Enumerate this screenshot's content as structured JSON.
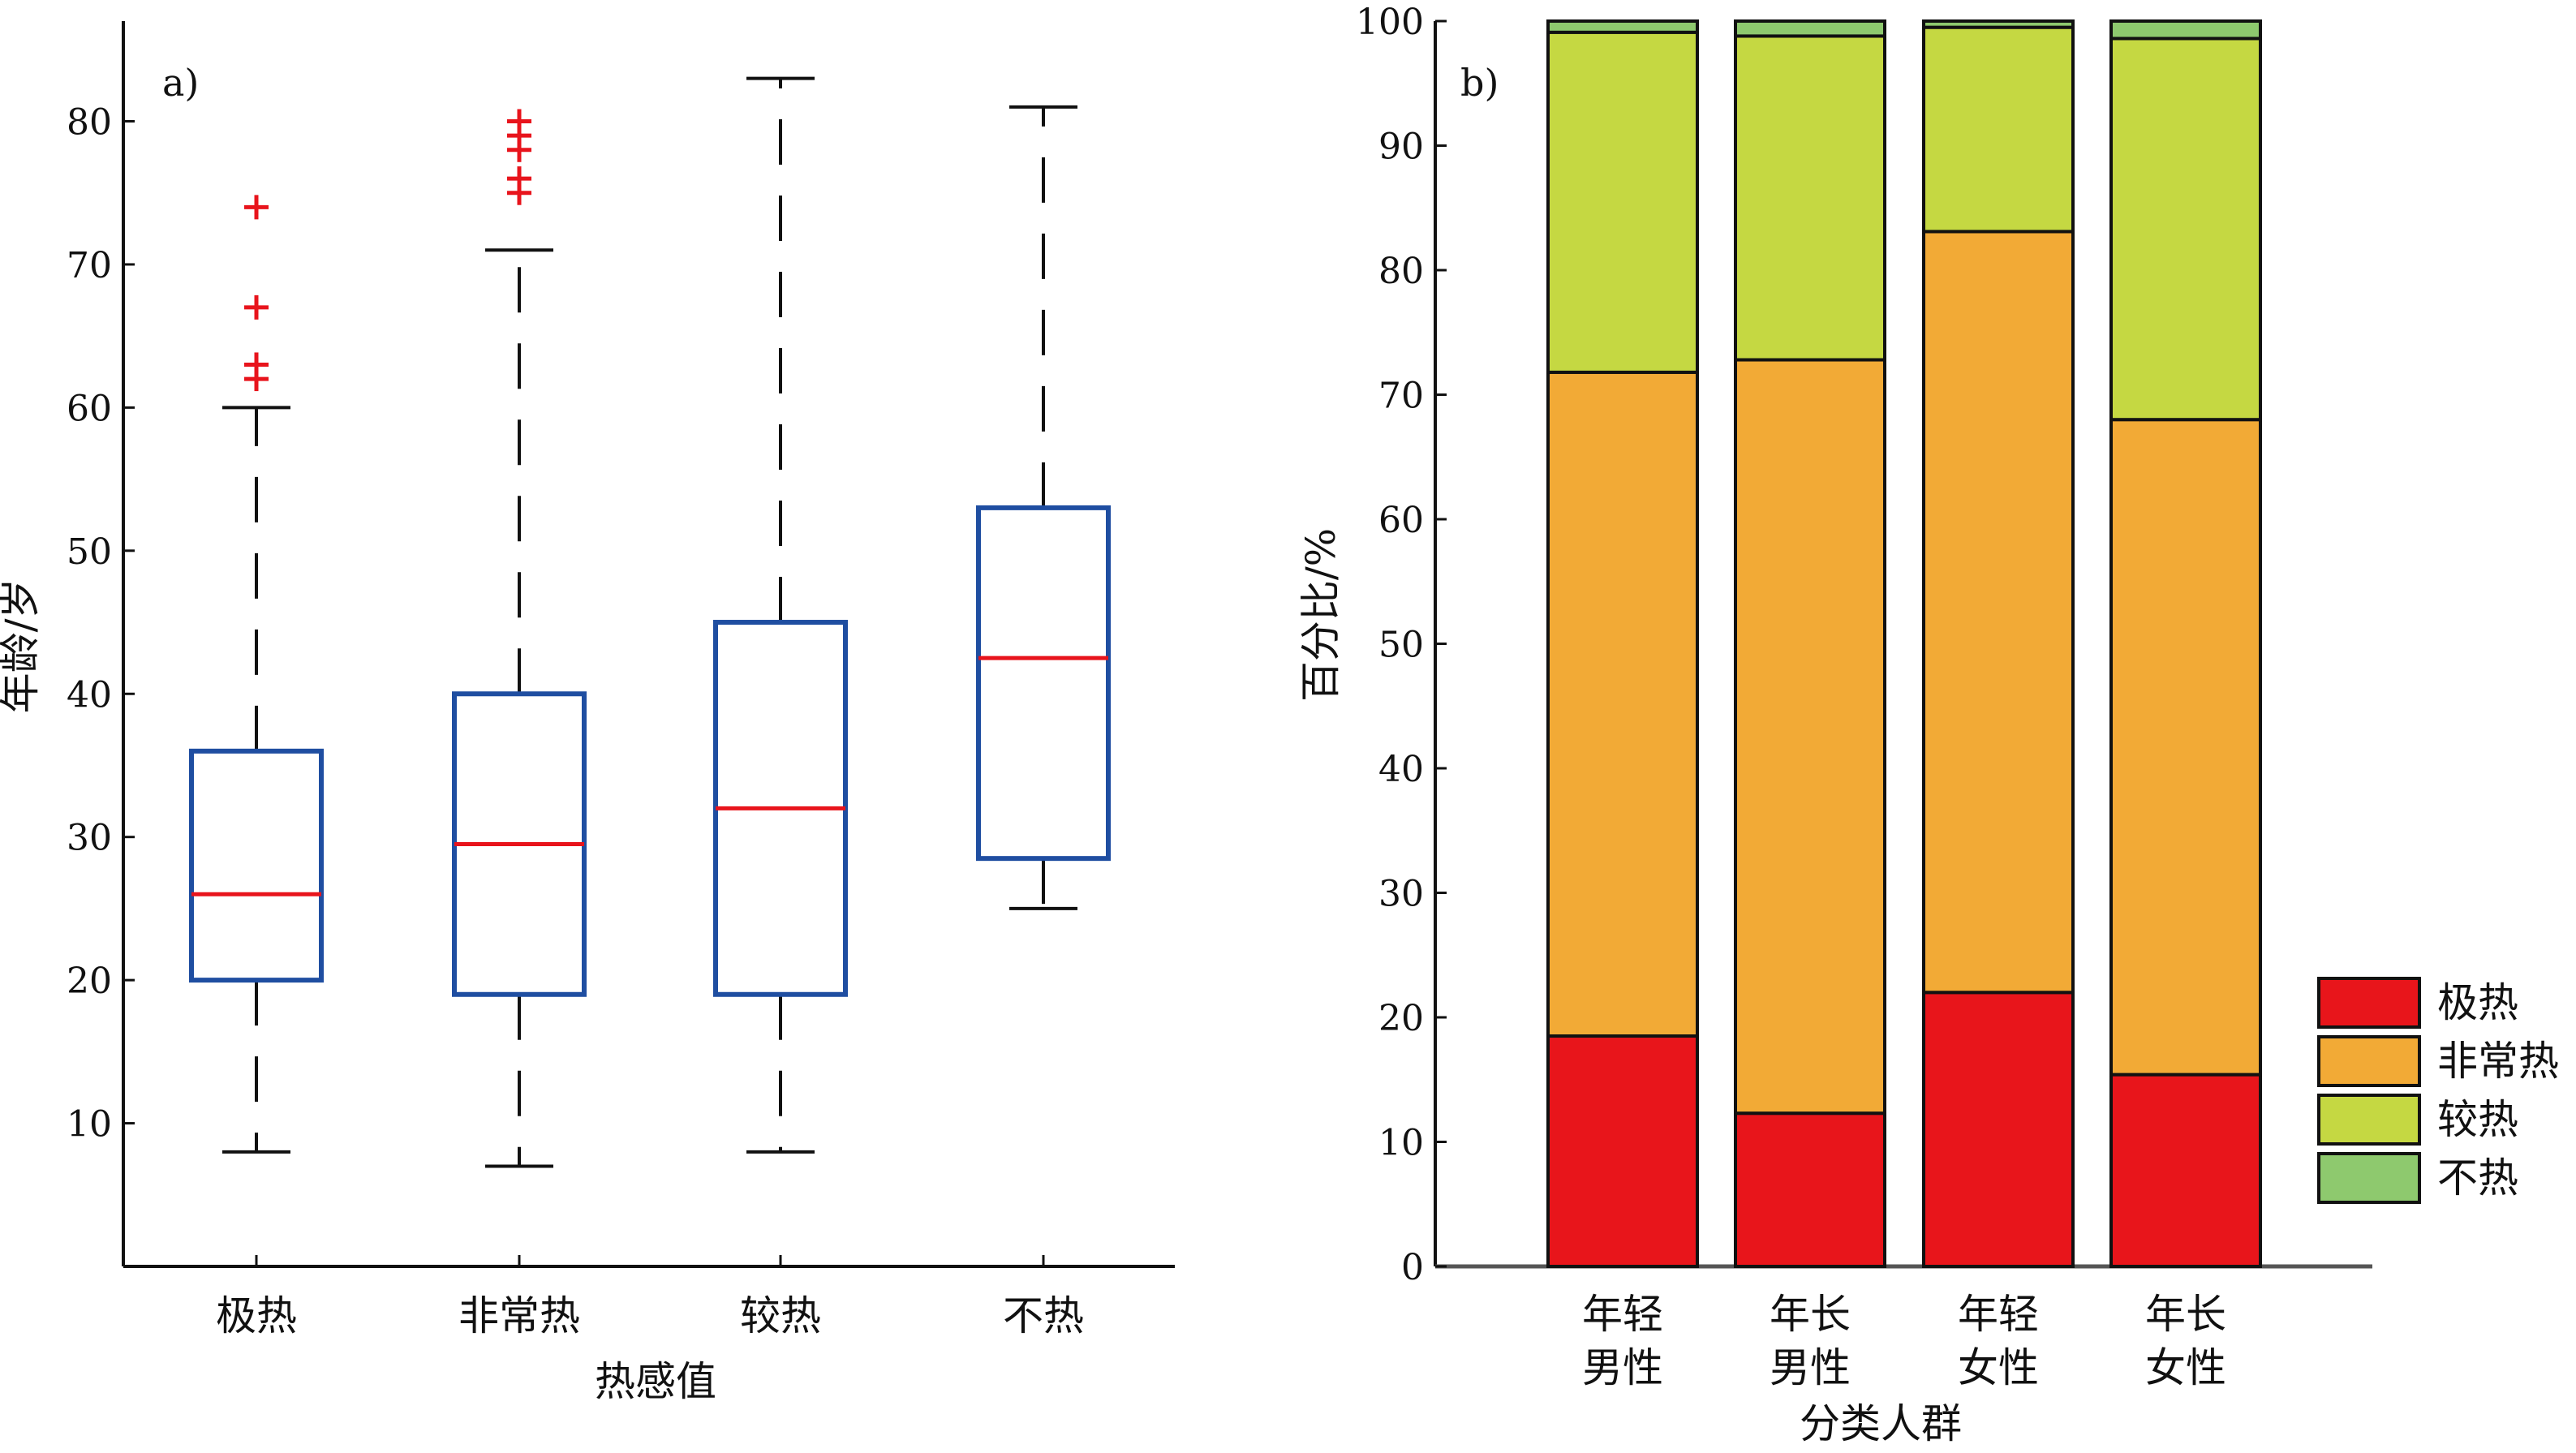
{
  "chart_data": [
    {
      "panel_label": "a)",
      "type": "box",
      "xlabel": "热感值",
      "ylabel": "年龄/岁",
      "ylim": [
        0,
        87
      ],
      "yticks": [
        10,
        20,
        30,
        40,
        50,
        60,
        70,
        80
      ],
      "categories": [
        "极热",
        "非常热",
        "较热",
        "不热"
      ],
      "boxes": [
        {
          "category": "极热",
          "whisker_low": 8,
          "q1": 20,
          "median": 26,
          "q3": 36,
          "whisker_high": 60,
          "outliers": [
            62,
            63,
            67,
            74
          ]
        },
        {
          "category": "非常热",
          "whisker_low": 7,
          "q1": 19,
          "median": 29.5,
          "q3": 40,
          "whisker_high": 71,
          "outliers": [
            75,
            76,
            78,
            79,
            80
          ]
        },
        {
          "category": "较热",
          "whisker_low": 8,
          "q1": 19,
          "median": 32,
          "q3": 45,
          "whisker_high": 83,
          "outliers": []
        },
        {
          "category": "不热",
          "whisker_low": 25,
          "q1": 28.5,
          "median": 42.5,
          "q3": 53,
          "whisker_high": 81,
          "outliers": []
        }
      ],
      "colors": {
        "box": "#1f4ea1",
        "median": "#e8141c",
        "whisker": "#111111",
        "outlier": "#e8141c"
      }
    },
    {
      "panel_label": "b)",
      "type": "stacked_bar",
      "xlabel": "分类人群",
      "ylabel": "百分比/%",
      "ylim": [
        0,
        100
      ],
      "yticks": [
        0,
        10,
        20,
        30,
        40,
        50,
        60,
        70,
        80,
        90,
        100
      ],
      "categories": [
        {
          "line1": "年轻",
          "line2": "男性"
        },
        {
          "line1": "年长",
          "line2": "男性"
        },
        {
          "line1": "年轻",
          "line2": "女性"
        },
        {
          "line1": "年长",
          "line2": "女性"
        }
      ],
      "series": [
        {
          "name": "极热",
          "color": "#e8151b",
          "values": [
            18.5,
            12.3,
            22.0,
            15.4
          ]
        },
        {
          "name": "非常热",
          "color": "#f2aa36",
          "values": [
            53.3,
            60.5,
            61.1,
            52.6
          ]
        },
        {
          "name": "较热",
          "color": "#c5d842",
          "values": [
            27.3,
            26.0,
            16.4,
            30.6
          ]
        },
        {
          "name": "不热",
          "color": "#8ec96e",
          "values": [
            0.9,
            1.2,
            0.5,
            1.4
          ]
        }
      ],
      "legend_position": "bottom-right"
    }
  ]
}
